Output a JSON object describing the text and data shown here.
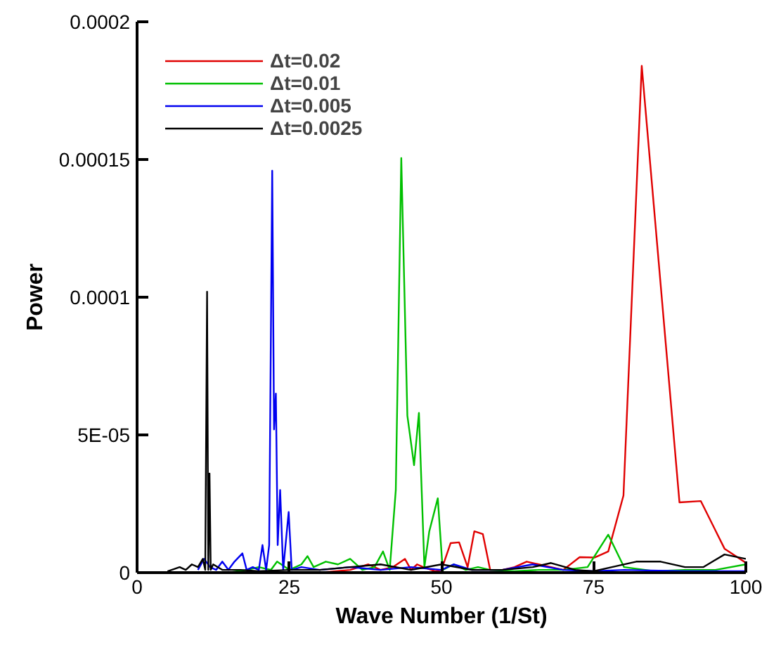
{
  "chart_data": {
    "type": "line",
    "xlabel": "Wave Number (1/St)",
    "ylabel": "Power",
    "xlim": [
      0,
      100
    ],
    "ylim": [
      0,
      0.0002
    ],
    "xticks": [
      0,
      25,
      50,
      75,
      100
    ],
    "yticks": [
      0,
      {
        "value": 5e-05,
        "label": "5E-05"
      },
      0.0001,
      0.00015,
      0.0002
    ],
    "grid": false,
    "legend": "top left",
    "marker": "none",
    "line_style": "solid",
    "series": [
      {
        "name": "Δt=0.02",
        "color": "#e00000",
        "x": [
          30,
          35,
          38,
          40,
          42,
          44,
          45,
          46,
          47,
          49,
          50,
          51.5,
          52.9,
          54.3,
          55.4,
          56.8,
          58,
          60,
          62,
          64,
          66,
          68,
          70,
          72.7,
          75.2,
          77.4,
          79.9,
          82.9,
          89.1,
          92.6,
          96.5,
          100
        ],
        "values": [
          0,
          1e-06,
          3e-06,
          1e-06,
          2e-06,
          5e-06,
          1e-06,
          3e-06,
          2e-06,
          5e-07,
          1e-06,
          1.07e-05,
          1.1e-05,
          2e-06,
          1.5e-05,
          1.4e-05,
          1e-06,
          1e-06,
          2e-06,
          4e-06,
          3e-06,
          2e-06,
          1e-06,
          5.6e-06,
          5.5e-06,
          7.7e-06,
          2.8e-05,
          0.000184,
          2.55e-05,
          2.6e-05,
          8.7e-06,
          3.6e-06
        ]
      },
      {
        "name": "Δt=0.01",
        "color": "#00c000",
        "x": [
          15,
          18,
          20,
          22,
          23,
          25,
          27,
          28,
          29,
          31,
          33,
          35,
          37,
          39,
          40.4,
          41.5,
          42.5,
          43.4,
          44.4,
          45.5,
          46.3,
          47.2,
          48,
          49.4,
          50.2,
          52,
          54,
          56,
          58,
          62,
          66,
          70,
          74,
          77.4,
          80,
          85,
          90,
          95,
          100
        ],
        "values": [
          0,
          1e-06,
          2e-06,
          1e-06,
          4e-06,
          1e-06,
          3e-06,
          6e-06,
          2e-06,
          4e-06,
          3e-06,
          5e-06,
          1e-06,
          2e-06,
          7.7e-06,
          1e-06,
          3e-05,
          0.0001505,
          5.7e-05,
          3.9e-05,
          5.8e-05,
          2e-06,
          1.5e-05,
          2.7e-05,
          1e-06,
          3e-06,
          1e-06,
          2e-06,
          1e-06,
          5e-07,
          1e-06,
          1e-06,
          2e-06,
          1.38e-05,
          2e-06,
          5e-07,
          1e-06,
          1e-06,
          3e-06
        ]
      },
      {
        "name": "Δt=0.005",
        "color": "#0000f0",
        "x": [
          10,
          11,
          12,
          13,
          14,
          15,
          16,
          17.3,
          18,
          19,
          20,
          20.6,
          21.2,
          21.7,
          22.2,
          22.5,
          22.8,
          23.1,
          23.5,
          24,
          24.9,
          25.4,
          27,
          30,
          35,
          40,
          45,
          50,
          52,
          55,
          60,
          65,
          70,
          75,
          80,
          90,
          100
        ],
        "values": [
          1e-06,
          5e-06,
          2e-06,
          1e-06,
          4e-06,
          1e-06,
          4e-06,
          7e-06,
          1e-06,
          2e-06,
          1e-06,
          1e-05,
          1e-06,
          1e-05,
          0.0001459,
          5.2e-05,
          6.5e-05,
          1e-05,
          3e-05,
          1e-06,
          2.2e-05,
          1e-06,
          2e-06,
          1e-06,
          2e-06,
          1e-06,
          2e-06,
          1e-06,
          3e-06,
          1e-06,
          1e-06,
          3e-06,
          1e-06,
          5e-07,
          1e-06,
          5e-07,
          5e-07
        ]
      },
      {
        "name": "Δt=0.0025",
        "color": "#000000",
        "x": [
          5,
          7,
          8,
          9,
          10,
          10.8,
          11.2,
          11.5,
          11.7,
          11.9,
          12.1,
          12.5,
          14,
          17,
          20,
          25,
          30,
          35,
          40,
          45,
          50,
          55,
          60,
          65,
          68,
          72,
          75,
          78,
          82,
          86,
          90,
          93,
          96.5,
          100
        ],
        "values": [
          5e-07,
          2e-06,
          1e-06,
          3e-06,
          2e-06,
          5e-06,
          1e-06,
          0.000102,
          1e-06,
          3.6e-05,
          1e-06,
          3e-06,
          1e-06,
          1e-06,
          5e-07,
          1e-06,
          1e-06,
          2e-06,
          3e-06,
          1e-06,
          3e-06,
          1e-06,
          1e-06,
          2e-06,
          3.5e-06,
          1e-06,
          5e-07,
          2e-06,
          4e-06,
          4e-06,
          2e-06,
          2e-06,
          6.6e-06,
          5e-06
        ]
      }
    ]
  }
}
